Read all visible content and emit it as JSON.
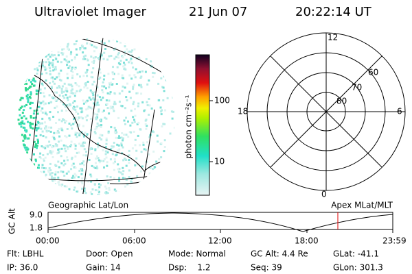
{
  "header": {
    "title": "Ultraviolet Imager",
    "date": "21 Jun 07",
    "time": "20:22:14 UT"
  },
  "colorbar": {
    "label": "photon cm⁻²s⁻¹",
    "ticks": [
      "100",
      "10"
    ]
  },
  "polar": {
    "hour_labels": [
      "12",
      "18",
      "6",
      "0"
    ],
    "lat_labels": [
      "60",
      "70",
      "80"
    ]
  },
  "altitude_plot": {
    "left_label": "Geographic Lat/Lon",
    "right_label": "Apex MLat/MLT",
    "ylabel": "GC Alt",
    "yticks": [
      "9.0",
      "1.8"
    ],
    "xticks": [
      "00:00",
      "06:00",
      "12:00",
      "18:00",
      "23:59"
    ]
  },
  "info": [
    [
      "Flt: LBHL",
      "Door: Open",
      "Mode: Normal",
      "GC Alt: 4.4 Re",
      "GLat: -41.1"
    ],
    [
      "IP: 36.0",
      "Gain: 14",
      "Dsp:    1.2",
      "Seq: 39",
      "GLon: 301.3"
    ]
  ]
}
